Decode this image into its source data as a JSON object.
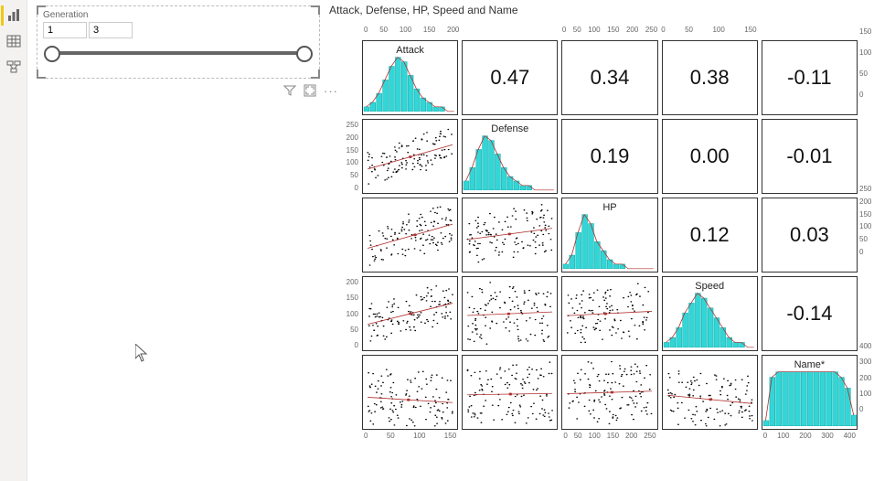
{
  "sidebar": {
    "items": [
      {
        "name": "report-view-icon",
        "active": true
      },
      {
        "name": "data-view-icon",
        "active": false
      },
      {
        "name": "model-view-icon",
        "active": false
      }
    ]
  },
  "slicer": {
    "title": "Generation",
    "min_value": "1",
    "max_value": "3",
    "handle_positions_pct": [
      0,
      100
    ],
    "toolbar": {
      "filter_icon": "filter-icon",
      "focus_icon": "focus-mode-icon",
      "more_icon": "more-options-icon"
    }
  },
  "visual": {
    "title": "Attack, Defense, HP, Speed and Name",
    "variables": [
      "Attack",
      "Defense",
      "HP",
      "Speed",
      "Name*"
    ],
    "correlations": [
      [
        null,
        0.47,
        0.34,
        0.38,
        -0.11
      ],
      [
        null,
        null,
        0.19,
        0.0,
        -0.01
      ],
      [
        null,
        null,
        null,
        0.12,
        0.03
      ],
      [
        null,
        null,
        null,
        null,
        -0.14
      ],
      [
        null,
        null,
        null,
        null,
        null
      ]
    ],
    "hist_color": "#33d6d6",
    "hist_stroke": "#0aa8a8",
    "density_line_color": "#b03030",
    "scatter_point_color": "#000000",
    "trend_line_color": "#b03030",
    "cell_border_color": "#333333",
    "corr_fontsize_pt": 18,
    "label_fontsize_pt": 9,
    "histograms": {
      "Attack": {
        "bins": [
          1,
          2,
          4,
          7,
          10,
          12,
          11,
          8,
          5,
          3,
          2,
          1,
          1,
          0,
          0
        ]
      },
      "Defense": {
        "bins": [
          2,
          5,
          9,
          12,
          11,
          8,
          5,
          3,
          2,
          1,
          1,
          0,
          0,
          0,
          0
        ]
      },
      "HP": {
        "bins": [
          1,
          3,
          8,
          12,
          10,
          6,
          4,
          2,
          1,
          1,
          0,
          0,
          0,
          0,
          0
        ]
      },
      "Speed": {
        "bins": [
          1,
          2,
          4,
          7,
          9,
          11,
          10,
          8,
          6,
          4,
          2,
          1,
          1,
          0,
          0
        ]
      },
      "Name*": {
        "bins": [
          1,
          9,
          10,
          10,
          10,
          10,
          10,
          10,
          10,
          10,
          10,
          10,
          9,
          7,
          2
        ]
      }
    },
    "top_axis_ticks": [
      [
        0,
        50,
        100,
        150,
        200
      ],
      [],
      [
        0,
        50,
        100,
        150,
        200,
        250
      ],
      [
        0,
        50,
        100,
        150
      ],
      []
    ],
    "bottom_axis_ticks": [
      [
        0,
        50,
        100,
        150
      ],
      [],
      [
        0,
        50,
        100,
        150,
        200,
        250
      ],
      [],
      [
        0,
        100,
        200,
        300,
        400
      ]
    ],
    "left_axis_ticks": [
      [],
      [
        0,
        50,
        100,
        150,
        200,
        250
      ],
      [],
      [
        0,
        50,
        100,
        150,
        200
      ],
      []
    ],
    "right_axis_ticks": [
      [
        0,
        50,
        100,
        150
      ],
      [],
      [
        0,
        50,
        100,
        150,
        200,
        250
      ],
      [],
      [
        0,
        100,
        200,
        300,
        400
      ]
    ],
    "scatter_seed": 20251127
  }
}
